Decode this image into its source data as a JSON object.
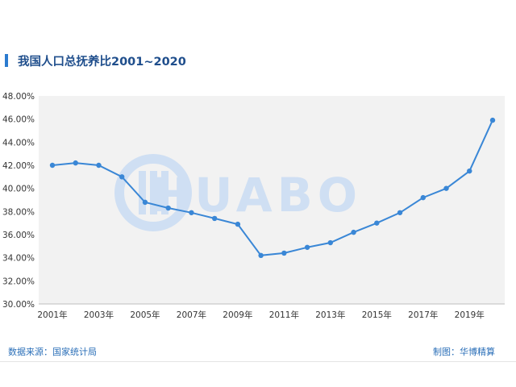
{
  "title": "我国人口总抚养比2001~2020",
  "watermark": "HUABO",
  "footer": {
    "source": "数据来源：国家统计局",
    "credit": "制图：华博精算"
  },
  "colors": {
    "line": "#3a87d6",
    "plot_bg": "#f2f2f2",
    "title": "#1f4e8c",
    "accent": "#2b7bcf",
    "watermark": "#cfdff3"
  },
  "chart_data": {
    "type": "line",
    "title": "我国人口总抚养比2001~2020",
    "xlabel": "",
    "ylabel": "",
    "x": [
      2001,
      2002,
      2003,
      2004,
      2005,
      2006,
      2007,
      2008,
      2009,
      2010,
      2011,
      2012,
      2013,
      2014,
      2015,
      2016,
      2017,
      2018,
      2019,
      2020
    ],
    "x_tick_labels": [
      "2001年",
      "2003年",
      "2005年",
      "2007年",
      "2009年",
      "2011年",
      "2013年",
      "2015年",
      "2017年",
      "2019年"
    ],
    "y_tick_labels": [
      "30.00%",
      "32.00%",
      "34.00%",
      "36.00%",
      "38.00%",
      "40.00%",
      "42.00%",
      "44.00%",
      "46.00%",
      "48.00%"
    ],
    "ylim": [
      30,
      48
    ],
    "series": [
      {
        "values": [
          42.0,
          42.2,
          42.0,
          41.0,
          38.8,
          38.3,
          37.9,
          37.4,
          36.9,
          34.2,
          34.4,
          34.9,
          35.3,
          36.2,
          37.0,
          37.9,
          39.2,
          40.0,
          41.5,
          45.9
        ]
      }
    ],
    "grid": false,
    "legend": "none"
  }
}
